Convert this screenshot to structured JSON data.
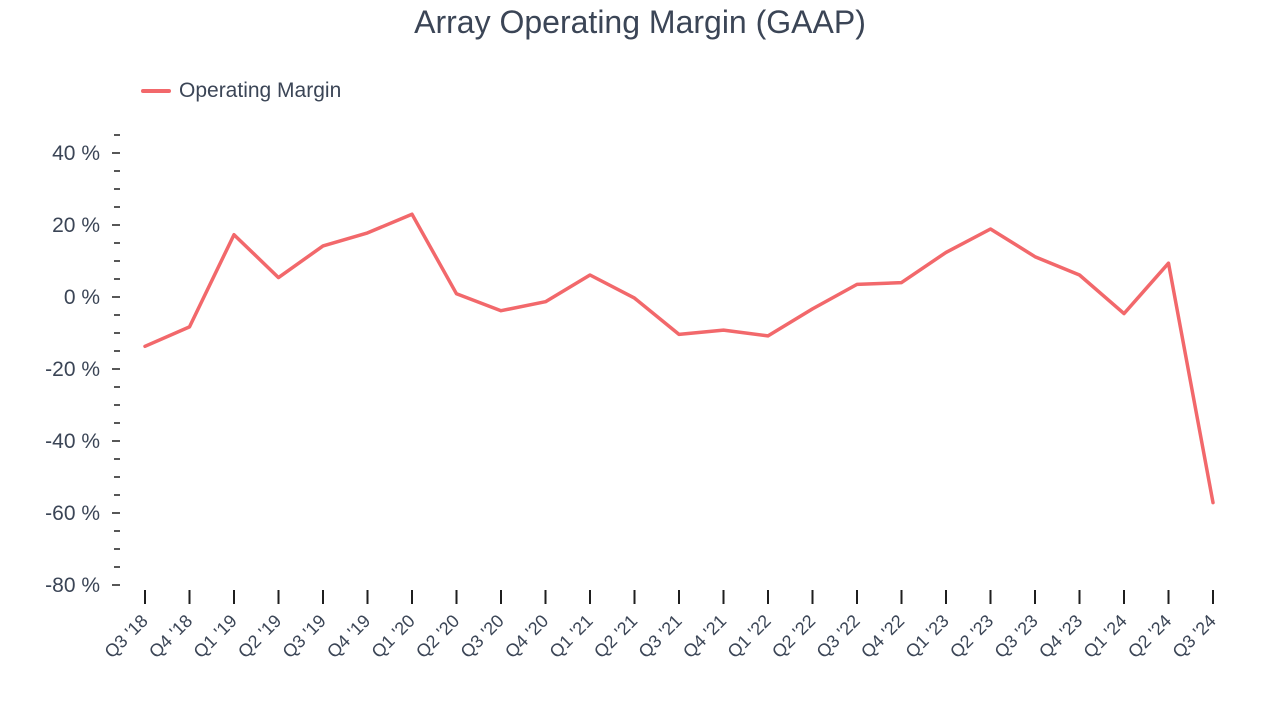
{
  "chart_data": {
    "type": "line",
    "title": "Array Operating Margin (GAAP)",
    "xlabel": "",
    "ylabel": "",
    "categories": [
      "Q3 '18",
      "Q4 '18",
      "Q1 '19",
      "Q2 '19",
      "Q3 '19",
      "Q4 '19",
      "Q1 '20",
      "Q2 '20",
      "Q3 '20",
      "Q4 '20",
      "Q1 '21",
      "Q2 '21",
      "Q3 '21",
      "Q4 '21",
      "Q1 '22",
      "Q2 '22",
      "Q3 '22",
      "Q4 '22",
      "Q1 '23",
      "Q2 '23",
      "Q3 '23",
      "Q4 '23",
      "Q1 '24",
      "Q2 '24",
      "Q3 '24"
    ],
    "series": [
      {
        "name": "Operating Margin",
        "color": "#f2686b",
        "values": [
          -13.7,
          -8.3,
          17.3,
          5.4,
          14.2,
          17.8,
          23.0,
          0.9,
          -3.8,
          -1.3,
          6.1,
          -0.3,
          -10.4,
          -9.2,
          -10.8,
          -3.3,
          3.5,
          4.0,
          12.4,
          18.9,
          11.2,
          6.1,
          -4.6,
          9.4,
          -57.1
        ]
      }
    ],
    "ylim": [
      -80,
      45
    ],
    "yticks": [
      40,
      20,
      0,
      -20,
      -40,
      -60,
      -80
    ],
    "ytick_labels": [
      "40 %",
      "20 %",
      "0 %",
      "-20 %",
      "-40 %",
      "-60 %",
      "-80 %"
    ],
    "grid": false,
    "legend_position": "top-left"
  }
}
